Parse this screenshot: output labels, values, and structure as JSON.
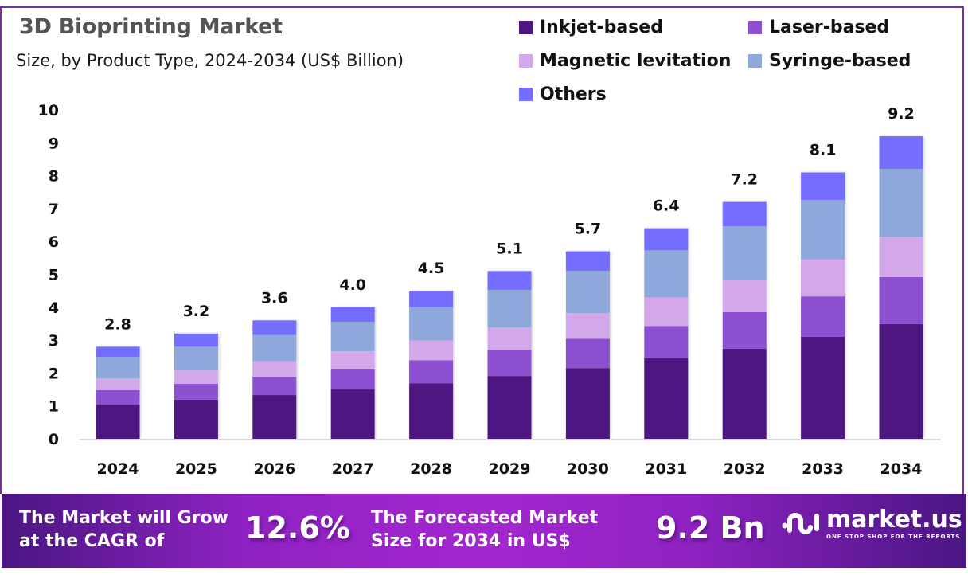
{
  "header": {
    "title": "3D Bioprinting Market",
    "subtitle": "Size, by Product Type, 2024-2034 (US$ Billion)"
  },
  "legend": [
    {
      "label": "Inkjet-based",
      "color": "#4e1681"
    },
    {
      "label": "Laser-based",
      "color": "#8c4fcf"
    },
    {
      "label": "Magnetic levitation",
      "color": "#d2a8eb"
    },
    {
      "label": "Syringe-based",
      "color": "#8ea8db"
    },
    {
      "label": "Others",
      "color": "#756dff"
    }
  ],
  "chart_data": {
    "type": "bar",
    "stacked": true,
    "title": "3D Bioprinting Market",
    "subtitle": "Size, by Product Type, 2024-2034 (US$ Billion)",
    "xlabel": "",
    "ylabel": "",
    "ylim": [
      0,
      10
    ],
    "yticks": [
      "0",
      "1",
      "2",
      "3",
      "4",
      "5",
      "6",
      "7",
      "8",
      "9",
      "10"
    ],
    "grid": false,
    "legend_position": "top-right",
    "categories": [
      "2024",
      "2025",
      "2026",
      "2027",
      "2028",
      "2029",
      "2030",
      "2031",
      "2032",
      "2033",
      "2034"
    ],
    "series": [
      {
        "name": "Inkjet-based",
        "color": "#4e1681",
        "values": [
          1.04,
          1.19,
          1.33,
          1.5,
          1.69,
          1.91,
          2.15,
          2.45,
          2.74,
          3.1,
          3.49
        ]
      },
      {
        "name": "Laser-based",
        "color": "#8c4fcf",
        "values": [
          0.44,
          0.48,
          0.55,
          0.63,
          0.7,
          0.8,
          0.89,
          0.98,
          1.11,
          1.23,
          1.43
        ]
      },
      {
        "name": "Magnetic levitation",
        "color": "#d2a8eb",
        "values": [
          0.36,
          0.43,
          0.48,
          0.53,
          0.6,
          0.68,
          0.78,
          0.87,
          0.97,
          1.12,
          1.23
        ]
      },
      {
        "name": "Syringe-based",
        "color": "#8ea8db",
        "values": [
          0.65,
          0.7,
          0.8,
          0.9,
          1.02,
          1.14,
          1.29,
          1.43,
          1.64,
          1.81,
          2.06
        ]
      },
      {
        "name": "Others",
        "color": "#756dff",
        "values": [
          0.31,
          0.4,
          0.44,
          0.44,
          0.49,
          0.57,
          0.59,
          0.67,
          0.74,
          0.84,
          0.99
        ]
      }
    ],
    "totals": [
      2.8,
      3.2,
      3.6,
      4.0,
      4.5,
      5.1,
      5.7,
      6.4,
      7.2,
      8.1,
      9.2
    ],
    "total_labels": [
      "2.8",
      "3.2",
      "3.6",
      "4.0",
      "4.5",
      "5.1",
      "5.7",
      "6.4",
      "7.2",
      "8.1",
      "9.2"
    ]
  },
  "banner": {
    "cagr_text_line1": "The Market will Grow",
    "cagr_text_line2": "at the CAGR of",
    "cagr_value": "12.6%",
    "forecast_text_line1": "The Forecasted Market",
    "forecast_text_line2": "Size for 2034 in US$",
    "forecast_value": "9.2 Bn",
    "logo_name": "market.us",
    "logo_tagline": "ONE STOP SHOP FOR THE REPORTS"
  }
}
